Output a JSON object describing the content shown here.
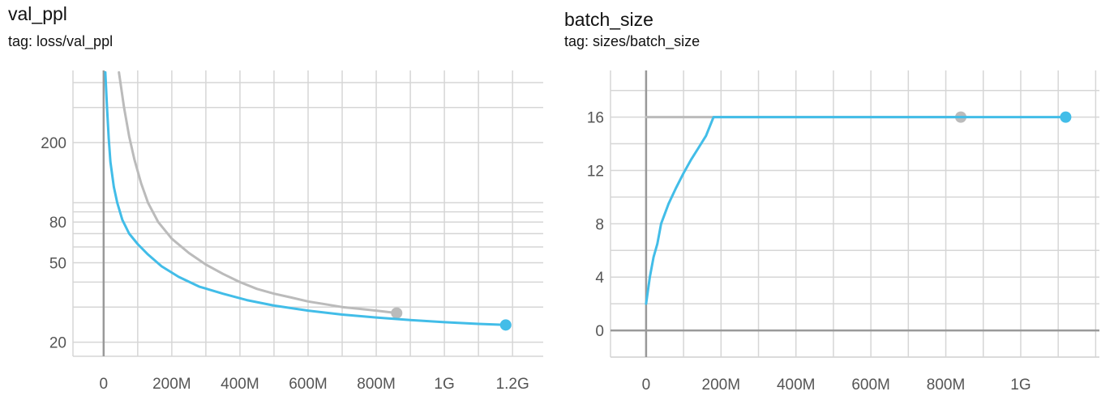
{
  "charts": [
    {
      "title": "val_ppl",
      "tag": "tag: loss/val_ppl"
    },
    {
      "title": "batch_size",
      "tag": "tag: sizes/batch_size"
    }
  ],
  "colors": {
    "blue": "#42bde8",
    "gray": "#bbbbbb",
    "grid": "#d6d6d6",
    "axis": "#999999"
  },
  "chart_data": [
    {
      "type": "line",
      "title": "val_ppl",
      "subtitle": "tag: loss/val_ppl",
      "xlabel": "",
      "ylabel": "",
      "yscale": "log",
      "xlim": [
        -90000000,
        1290000000
      ],
      "ylim": [
        17,
        460
      ],
      "x_ticks": [
        0,
        200000000,
        400000000,
        600000000,
        800000000,
        1000000000,
        1200000000
      ],
      "x_tick_labels": [
        "0",
        "200M",
        "400M",
        "600M",
        "800M",
        "1G",
        "1.2G"
      ],
      "y_ticks": [
        20,
        50,
        80,
        200
      ],
      "y_tick_labels": [
        "20",
        "50",
        "80",
        "200"
      ],
      "y_grid": [
        20,
        30,
        40,
        50,
        60,
        70,
        80,
        90,
        100,
        200,
        300,
        400
      ],
      "grid": true,
      "series": [
        {
          "color": "#bbbbbb",
          "end_marker": true,
          "x": [
            45000000,
            60000000,
            75000000,
            90000000,
            110000000,
            130000000,
            160000000,
            200000000,
            250000000,
            300000000,
            350000000,
            400000000,
            450000000,
            500000000,
            550000000,
            600000000,
            650000000,
            700000000,
            750000000,
            800000000,
            860000000
          ],
          "y": [
            450,
            300,
            215,
            165,
            125,
            100,
            80,
            66,
            56,
            49,
            44,
            40,
            37,
            35,
            33.5,
            32,
            31,
            30,
            29.4,
            28.8,
            28
          ]
        },
        {
          "color": "#42bde8",
          "end_marker": true,
          "x": [
            5000000,
            10000000,
            15000000,
            20000000,
            30000000,
            40000000,
            55000000,
            75000000,
            100000000,
            130000000,
            170000000,
            220000000,
            280000000,
            350000000,
            420000000,
            500000000,
            600000000,
            700000000,
            800000000,
            900000000,
            1000000000,
            1100000000,
            1180000000
          ],
          "y": [
            450,
            300,
            210,
            160,
            120,
            100,
            82,
            70,
            62,
            55,
            48,
            42.5,
            38,
            35,
            32.5,
            30.5,
            28.8,
            27.5,
            26.6,
            25.8,
            25.2,
            24.7,
            24.4
          ]
        }
      ]
    },
    {
      "type": "line",
      "title": "batch_size",
      "subtitle": "tag: sizes/batch_size",
      "xlabel": "",
      "ylabel": "",
      "xlim": [
        -95000000,
        1210000000
      ],
      "ylim": [
        -2,
        19.5
      ],
      "x_ticks": [
        0,
        200000000,
        400000000,
        600000000,
        800000000,
        1000000000
      ],
      "x_tick_labels": [
        "0",
        "200M",
        "400M",
        "600M",
        "800M",
        "1G"
      ],
      "y_ticks": [
        0,
        4,
        8,
        12,
        16
      ],
      "y_tick_labels": [
        "0",
        "4",
        "8",
        "12",
        "16"
      ],
      "grid": true,
      "series": [
        {
          "color": "#bbbbbb",
          "end_marker": true,
          "x": [
            0,
            840000000
          ],
          "y": [
            16,
            16
          ]
        },
        {
          "color": "#42bde8",
          "end_marker": true,
          "x": [
            0,
            10000000,
            20000000,
            30000000,
            40000000,
            60000000,
            80000000,
            100000000,
            120000000,
            140000000,
            160000000,
            180000000,
            840000000,
            1120000000
          ],
          "y": [
            2,
            4,
            5.5,
            6.5,
            8,
            9.5,
            10.7,
            11.8,
            12.8,
            13.7,
            14.6,
            16,
            16,
            16
          ]
        }
      ]
    }
  ]
}
